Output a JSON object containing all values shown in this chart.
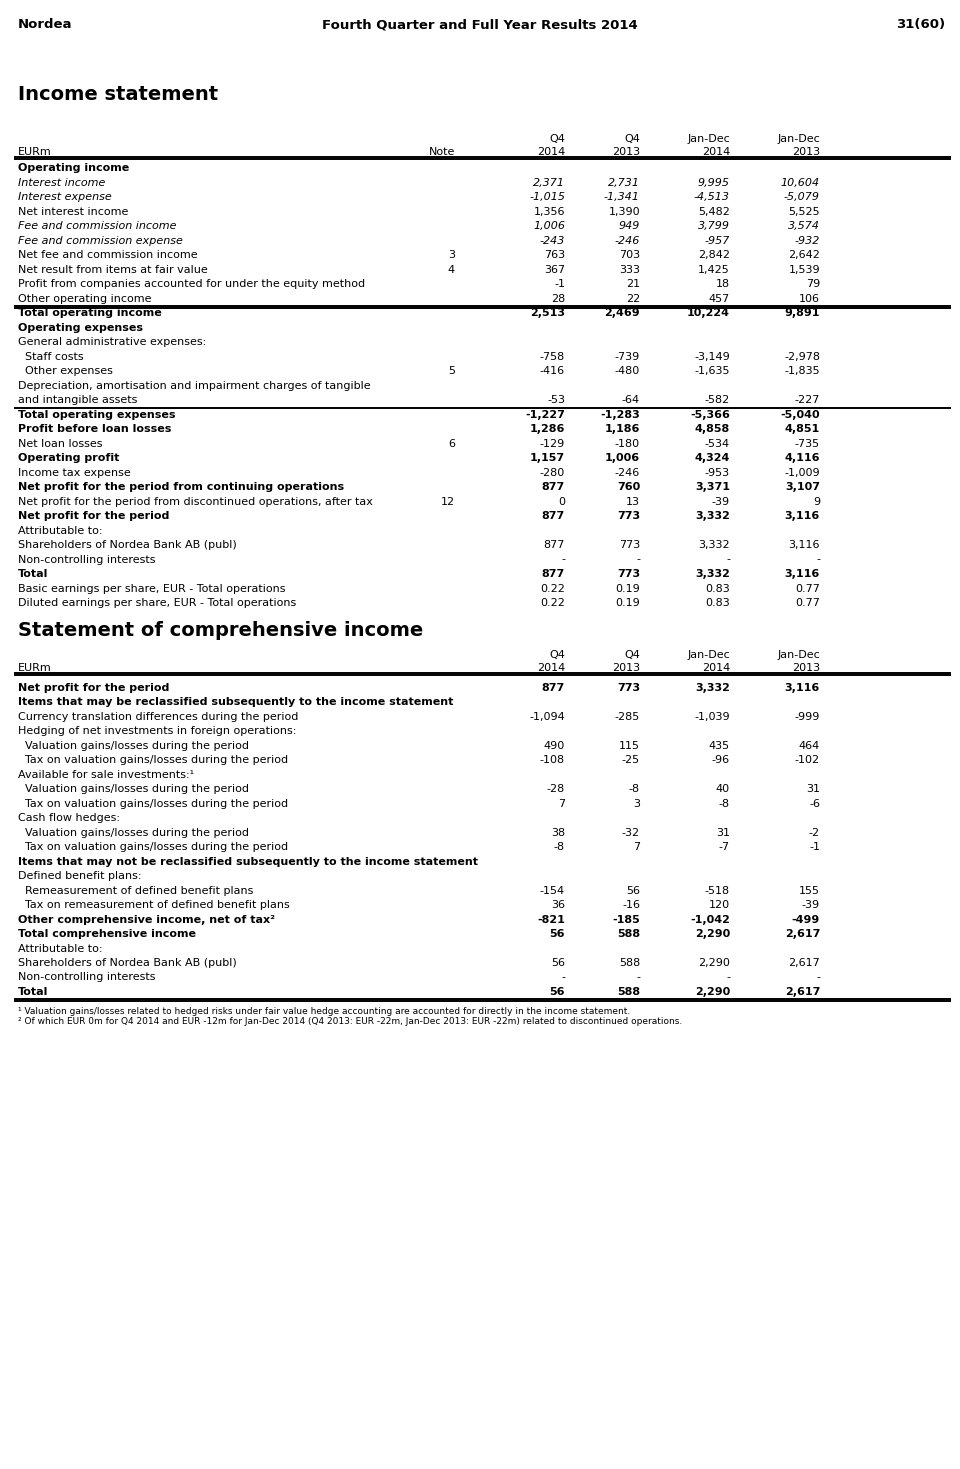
{
  "header_left": "Nordea",
  "header_center": "Fourth Quarter and Full Year Results 2014",
  "header_right": "31(60)",
  "section1_title": "Income statement",
  "section2_title": "Statement of comprehensive income",
  "income_rows": [
    {
      "label": "Operating income",
      "note": "",
      "v1": "",
      "v2": "",
      "v3": "",
      "v4": "",
      "bold": true,
      "italic": false,
      "multiline": false,
      "line_above": false,
      "line_above2": false
    },
    {
      "label": "Interest income",
      "note": "",
      "v1": "2,371",
      "v2": "2,731",
      "v3": "9,995",
      "v4": "10,604",
      "bold": false,
      "italic": true,
      "multiline": false,
      "line_above": false,
      "line_above2": false
    },
    {
      "label": "Interest expense",
      "note": "",
      "v1": "-1,015",
      "v2": "-1,341",
      "v3": "-4,513",
      "v4": "-5,079",
      "bold": false,
      "italic": true,
      "multiline": false,
      "line_above": false,
      "line_above2": false
    },
    {
      "label": "Net interest income",
      "note": "",
      "v1": "1,356",
      "v2": "1,390",
      "v3": "5,482",
      "v4": "5,525",
      "bold": false,
      "italic": false,
      "multiline": false,
      "line_above": false,
      "line_above2": false
    },
    {
      "label": "Fee and commission income",
      "note": "",
      "v1": "1,006",
      "v2": "949",
      "v3": "3,799",
      "v4": "3,574",
      "bold": false,
      "italic": true,
      "multiline": false,
      "line_above": false,
      "line_above2": false
    },
    {
      "label": "Fee and commission expense",
      "note": "",
      "v1": "-243",
      "v2": "-246",
      "v3": "-957",
      "v4": "-932",
      "bold": false,
      "italic": true,
      "multiline": false,
      "line_above": false,
      "line_above2": false
    },
    {
      "label": "Net fee and commission income",
      "note": "3",
      "v1": "763",
      "v2": "703",
      "v3": "2,842",
      "v4": "2,642",
      "bold": false,
      "italic": false,
      "multiline": false,
      "line_above": false,
      "line_above2": false
    },
    {
      "label": "Net result from items at fair value",
      "note": "4",
      "v1": "367",
      "v2": "333",
      "v3": "1,425",
      "v4": "1,539",
      "bold": false,
      "italic": false,
      "multiline": false,
      "line_above": false,
      "line_above2": false
    },
    {
      "label": "Profit from companies accounted for under the equity method",
      "note": "",
      "v1": "-1",
      "v2": "21",
      "v3": "18",
      "v4": "79",
      "bold": false,
      "italic": false,
      "multiline": false,
      "line_above": false,
      "line_above2": false
    },
    {
      "label": "Other operating income",
      "note": "",
      "v1": "28",
      "v2": "22",
      "v3": "457",
      "v4": "106",
      "bold": false,
      "italic": false,
      "multiline": false,
      "line_above": false,
      "line_above2": false
    },
    {
      "label": "Total operating income",
      "note": "",
      "v1": "2,513",
      "v2": "2,469",
      "v3": "10,224",
      "v4": "9,891",
      "bold": true,
      "italic": false,
      "multiline": false,
      "line_above": true,
      "line_above2": true
    },
    {
      "label": "Operating expenses",
      "note": "",
      "v1": "",
      "v2": "",
      "v3": "",
      "v4": "",
      "bold": true,
      "italic": false,
      "multiline": false,
      "line_above": false,
      "line_above2": false
    },
    {
      "label": "General administrative expenses:",
      "note": "",
      "v1": "",
      "v2": "",
      "v3": "",
      "v4": "",
      "bold": false,
      "italic": false,
      "multiline": false,
      "line_above": false,
      "line_above2": false
    },
    {
      "label": "  Staff costs",
      "note": "",
      "v1": "-758",
      "v2": "-739",
      "v3": "-3,149",
      "v4": "-2,978",
      "bold": false,
      "italic": false,
      "multiline": false,
      "line_above": false,
      "line_above2": false
    },
    {
      "label": "  Other expenses",
      "note": "5",
      "v1": "-416",
      "v2": "-480",
      "v3": "-1,635",
      "v4": "-1,835",
      "bold": false,
      "italic": false,
      "multiline": false,
      "line_above": false,
      "line_above2": false
    },
    {
      "label": "Depreciation, amortisation and impairment charges of tangible",
      "note": "",
      "v1": "",
      "v2": "",
      "v3": "",
      "v4": "",
      "bold": false,
      "italic": false,
      "multiline": true,
      "line_above": false,
      "line_above2": false,
      "label2": "and intangible assets",
      "v1b": "-53",
      "v2b": "-64",
      "v3b": "-582",
      "v4b": "-227"
    },
    {
      "label": "Total operating expenses",
      "note": "",
      "v1": "-1,227",
      "v2": "-1,283",
      "v3": "-5,366",
      "v4": "-5,040",
      "bold": true,
      "italic": false,
      "multiline": false,
      "line_above": true,
      "line_above2": false
    },
    {
      "label": "Profit before loan losses",
      "note": "",
      "v1": "1,286",
      "v2": "1,186",
      "v3": "4,858",
      "v4": "4,851",
      "bold": true,
      "italic": false,
      "multiline": false,
      "line_above": false,
      "line_above2": false
    },
    {
      "label": "Net loan losses",
      "note": "6",
      "v1": "-129",
      "v2": "-180",
      "v3": "-534",
      "v4": "-735",
      "bold": false,
      "italic": false,
      "multiline": false,
      "line_above": false,
      "line_above2": false
    },
    {
      "label": "Operating profit",
      "note": "",
      "v1": "1,157",
      "v2": "1,006",
      "v3": "4,324",
      "v4": "4,116",
      "bold": true,
      "italic": false,
      "multiline": false,
      "line_above": false,
      "line_above2": false
    },
    {
      "label": "Income tax expense",
      "note": "",
      "v1": "-280",
      "v2": "-246",
      "v3": "-953",
      "v4": "-1,009",
      "bold": false,
      "italic": false,
      "multiline": false,
      "line_above": false,
      "line_above2": false
    },
    {
      "label": "Net profit for the period from continuing operations",
      "note": "",
      "v1": "877",
      "v2": "760",
      "v3": "3,371",
      "v4": "3,107",
      "bold": true,
      "italic": false,
      "multiline": false,
      "line_above": false,
      "line_above2": false
    },
    {
      "label": "Net profit for the period from discontinued operations, after tax",
      "note": "12",
      "v1": "0",
      "v2": "13",
      "v3": "-39",
      "v4": "9",
      "bold": false,
      "italic": false,
      "multiline": false,
      "line_above": false,
      "line_above2": false
    },
    {
      "label": "Net profit for the period",
      "note": "",
      "v1": "877",
      "v2": "773",
      "v3": "3,332",
      "v4": "3,116",
      "bold": true,
      "italic": false,
      "multiline": false,
      "line_above": false,
      "line_above2": false
    },
    {
      "label": "Attributable to:",
      "note": "",
      "v1": "",
      "v2": "",
      "v3": "",
      "v4": "",
      "bold": false,
      "italic": false,
      "multiline": false,
      "line_above": false,
      "line_above2": false
    },
    {
      "label": "Shareholders of Nordea Bank AB (publ)",
      "note": "",
      "v1": "877",
      "v2": "773",
      "v3": "3,332",
      "v4": "3,116",
      "bold": false,
      "italic": false,
      "multiline": false,
      "line_above": false,
      "line_above2": false
    },
    {
      "label": "Non-controlling interests",
      "note": "",
      "v1": "-",
      "v2": "-",
      "v3": "-",
      "v4": "-",
      "bold": false,
      "italic": false,
      "multiline": false,
      "line_above": false,
      "line_above2": false
    },
    {
      "label": "Total",
      "note": "",
      "v1": "877",
      "v2": "773",
      "v3": "3,332",
      "v4": "3,116",
      "bold": true,
      "italic": false,
      "multiline": false,
      "line_above": false,
      "line_above2": false
    },
    {
      "label": "Basic earnings per share, EUR - Total operations",
      "note": "",
      "v1": "0.22",
      "v2": "0.19",
      "v3": "0.83",
      "v4": "0.77",
      "bold": false,
      "italic": false,
      "multiline": false,
      "line_above": false,
      "line_above2": false
    },
    {
      "label": "Diluted earnings per share, EUR - Total operations",
      "note": "",
      "v1": "0.22",
      "v2": "0.19",
      "v3": "0.83",
      "v4": "0.77",
      "bold": false,
      "italic": false,
      "multiline": false,
      "line_above": false,
      "line_above2": false
    }
  ],
  "comp_rows": [
    {
      "label": "Net profit for the period",
      "note": "",
      "v1": "877",
      "v2": "773",
      "v3": "3,332",
      "v4": "3,116",
      "bold": true,
      "italic": false
    },
    {
      "label": "Items that may be reclassified subsequently to the income statement",
      "note": "",
      "v1": "",
      "v2": "",
      "v3": "",
      "v4": "",
      "bold": true,
      "italic": false
    },
    {
      "label": "Currency translation differences during the period",
      "note": "",
      "v1": "-1,094",
      "v2": "-285",
      "v3": "-1,039",
      "v4": "-999",
      "bold": false,
      "italic": false
    },
    {
      "label": "Hedging of net investments in foreign operations:",
      "note": "",
      "v1": "",
      "v2": "",
      "v3": "",
      "v4": "",
      "bold": false,
      "italic": false
    },
    {
      "label": "  Valuation gains/losses during the period",
      "note": "",
      "v1": "490",
      "v2": "115",
      "v3": "435",
      "v4": "464",
      "bold": false,
      "italic": false
    },
    {
      "label": "  Tax on valuation gains/losses during the period",
      "note": "",
      "v1": "-108",
      "v2": "-25",
      "v3": "-96",
      "v4": "-102",
      "bold": false,
      "italic": false
    },
    {
      "label": "Available for sale investments:¹",
      "note": "",
      "v1": "",
      "v2": "",
      "v3": "",
      "v4": "",
      "bold": false,
      "italic": false
    },
    {
      "label": "  Valuation gains/losses during the period",
      "note": "",
      "v1": "-28",
      "v2": "-8",
      "v3": "40",
      "v4": "31",
      "bold": false,
      "italic": false
    },
    {
      "label": "  Tax on valuation gains/losses during the period",
      "note": "",
      "v1": "7",
      "v2": "3",
      "v3": "-8",
      "v4": "-6",
      "bold": false,
      "italic": false
    },
    {
      "label": "Cash flow hedges:",
      "note": "",
      "v1": "",
      "v2": "",
      "v3": "",
      "v4": "",
      "bold": false,
      "italic": false
    },
    {
      "label": "  Valuation gains/losses during the period",
      "note": "",
      "v1": "38",
      "v2": "-32",
      "v3": "31",
      "v4": "-2",
      "bold": false,
      "italic": false
    },
    {
      "label": "  Tax on valuation gains/losses during the period",
      "note": "",
      "v1": "-8",
      "v2": "7",
      "v3": "-7",
      "v4": "-1",
      "bold": false,
      "italic": false
    },
    {
      "label": "Items that may not be reclassified subsequently to the income statement",
      "note": "",
      "v1": "",
      "v2": "",
      "v3": "",
      "v4": "",
      "bold": true,
      "italic": false
    },
    {
      "label": "Defined benefit plans:",
      "note": "",
      "v1": "",
      "v2": "",
      "v3": "",
      "v4": "",
      "bold": false,
      "italic": false
    },
    {
      "label": "  Remeasurement of defined benefit plans",
      "note": "",
      "v1": "-154",
      "v2": "56",
      "v3": "-518",
      "v4": "155",
      "bold": false,
      "italic": false
    },
    {
      "label": "  Tax on remeasurement of defined benefit plans",
      "note": "",
      "v1": "36",
      "v2": "-16",
      "v3": "120",
      "v4": "-39",
      "bold": false,
      "italic": false
    },
    {
      "label": "Other comprehensive income, net of tax²",
      "note": "",
      "v1": "-821",
      "v2": "-185",
      "v3": "-1,042",
      "v4": "-499",
      "bold": true,
      "italic": false
    },
    {
      "label": "Total comprehensive income",
      "note": "",
      "v1": "56",
      "v2": "588",
      "v3": "2,290",
      "v4": "2,617",
      "bold": true,
      "italic": false
    },
    {
      "label": "Attributable to:",
      "note": "",
      "v1": "",
      "v2": "",
      "v3": "",
      "v4": "",
      "bold": false,
      "italic": false
    },
    {
      "label": "Shareholders of Nordea Bank AB (publ)",
      "note": "",
      "v1": "56",
      "v2": "588",
      "v3": "2,290",
      "v4": "2,617",
      "bold": false,
      "italic": false
    },
    {
      "label": "Non-controlling interests",
      "note": "",
      "v1": "-",
      "v2": "-",
      "v3": "-",
      "v4": "-",
      "bold": false,
      "italic": false
    },
    {
      "label": "Total",
      "note": "",
      "v1": "56",
      "v2": "588",
      "v3": "2,290",
      "v4": "2,617",
      "bold": true,
      "italic": false
    }
  ],
  "footnotes": [
    "¹ Valuation gains/losses related to hedged risks under fair value hedge accounting are accounted for directly in the income statement.",
    "² Of which EUR 0m for Q4 2014 and EUR -12m for Jan-Dec 2014 (Q4 2013: EUR -22m, Jan-Dec 2013: EUR -22m) related to discontinued operations."
  ]
}
